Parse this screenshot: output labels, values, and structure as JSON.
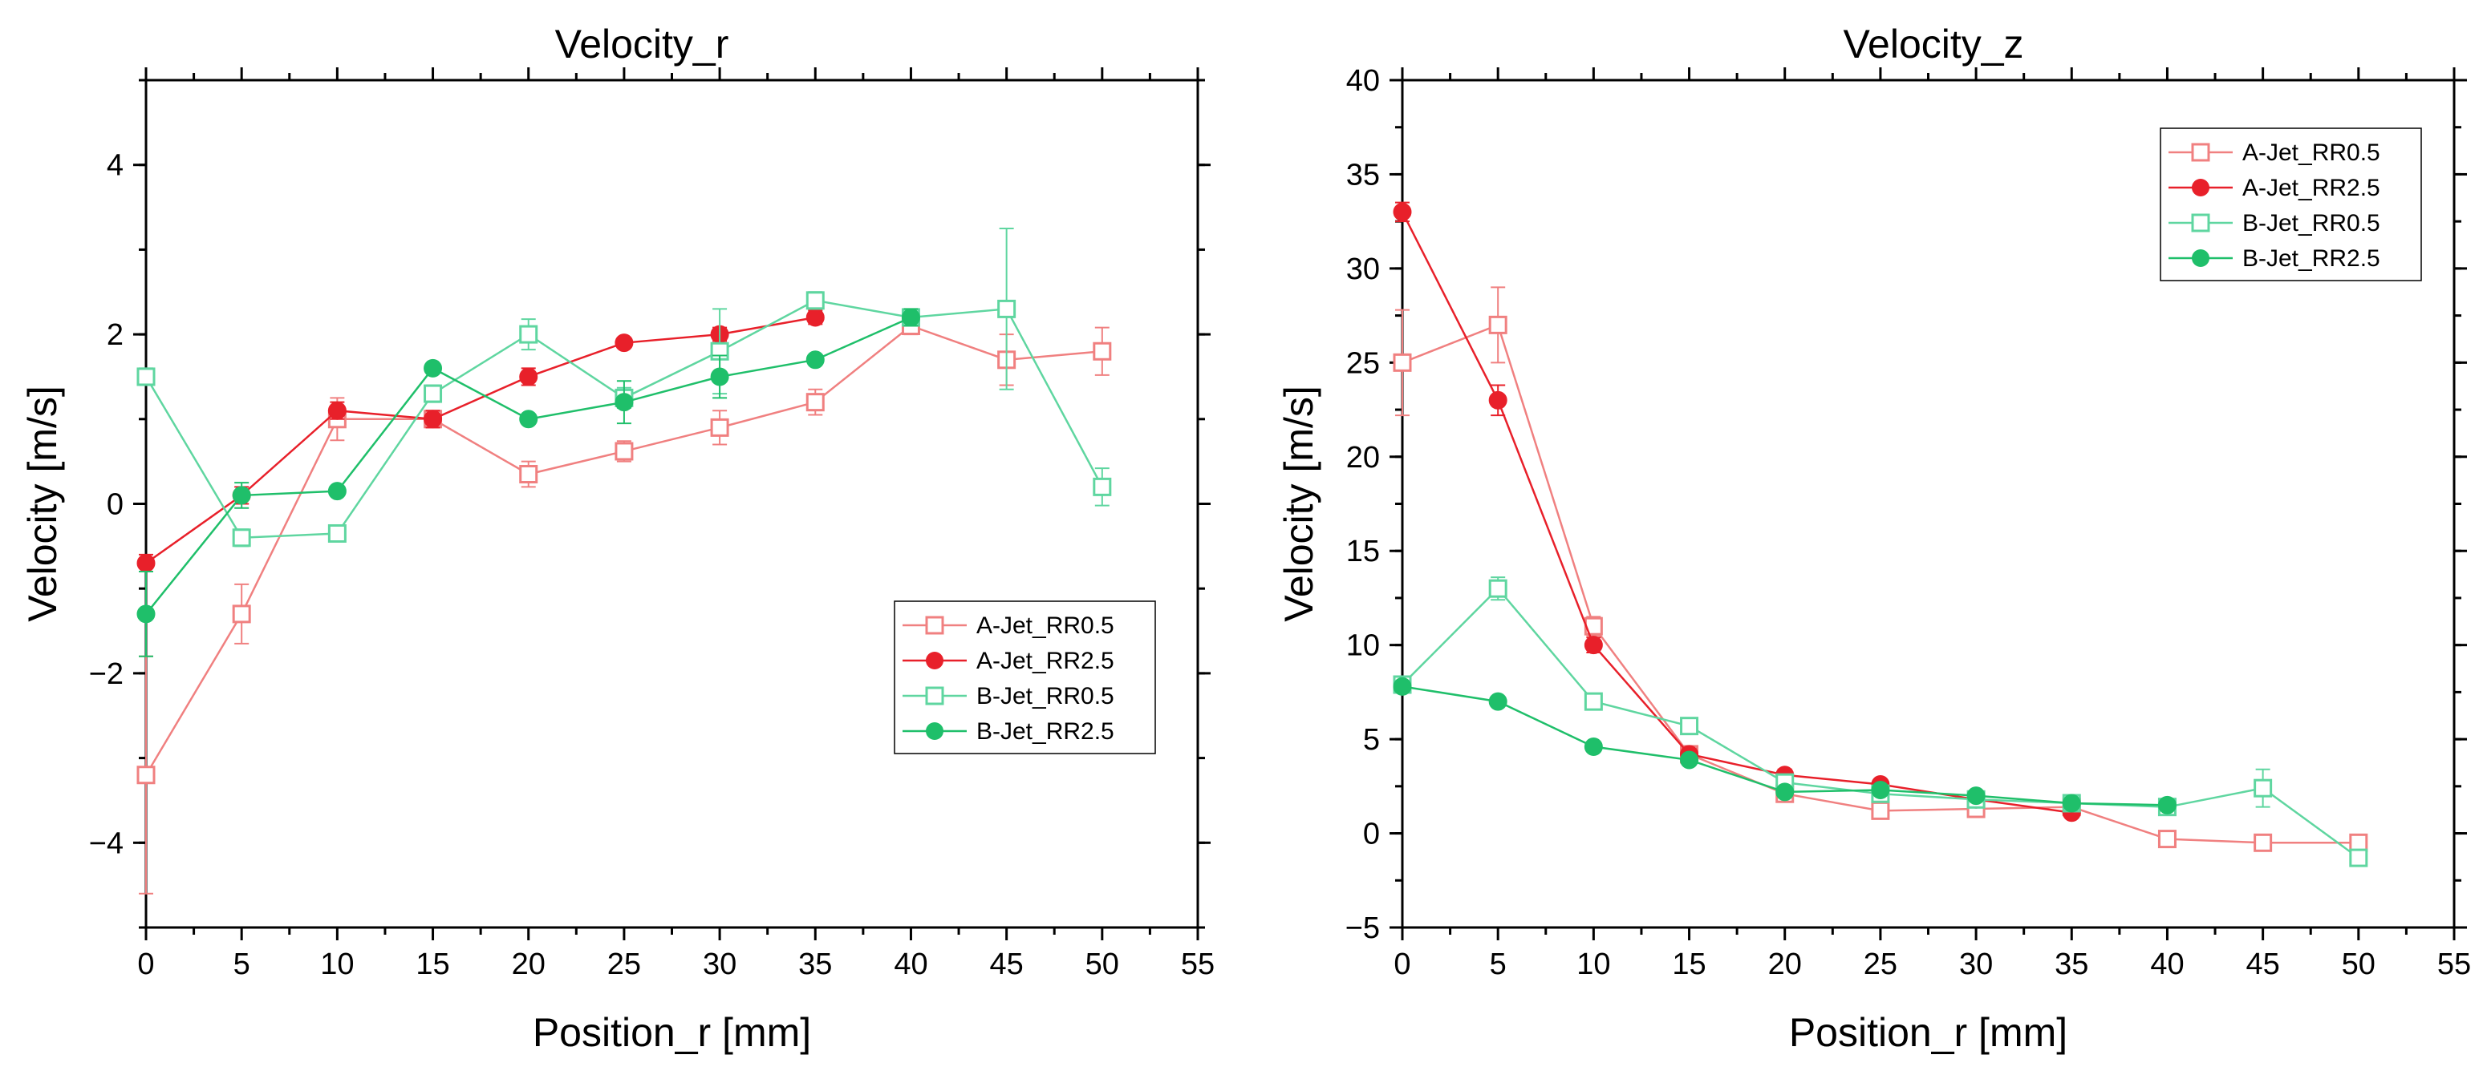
{
  "colors": {
    "a_jet": "#f08080",
    "a_jet_filled": "#e8202a",
    "b_jet": "#5fd6a0",
    "b_jet_filled": "#1fbf6a"
  },
  "chart_data": [
    {
      "type": "line",
      "title": "Velocity_r",
      "xlabel": "Position_r [mm]",
      "ylabel": "Velocity [m/s]",
      "xlim": [
        0,
        55
      ],
      "ylim": [
        -5,
        5
      ],
      "xticks": [
        0,
        5,
        10,
        15,
        20,
        25,
        30,
        35,
        40,
        45,
        50,
        55
      ],
      "yticks": [
        -4,
        -2,
        0,
        2,
        4
      ],
      "legend": "lower-right",
      "series": [
        {
          "name": "A-Jet_RR0.5",
          "color": "#f08080",
          "marker": "open-square",
          "x": [
            0,
            5,
            10,
            15,
            20,
            25,
            30,
            35,
            40,
            45,
            50
          ],
          "y": [
            -3.2,
            -1.3,
            1.0,
            1.0,
            0.35,
            0.62,
            0.9,
            1.2,
            2.1,
            1.7,
            1.8
          ],
          "err": [
            1.4,
            0.35,
            0.25,
            0.1,
            0.15,
            0.12,
            0.2,
            0.15,
            0.1,
            0.3,
            0.28
          ]
        },
        {
          "name": "A-Jet_RR2.5",
          "color": "#e8202a",
          "marker": "filled-circle",
          "x": [
            0,
            5,
            10,
            15,
            20,
            25,
            30,
            35
          ],
          "y": [
            -0.7,
            0.1,
            1.1,
            1.0,
            1.5,
            1.9,
            2.0,
            2.2
          ],
          "err": [
            0.1,
            0.1,
            0.1,
            0.1,
            0.1,
            0.05,
            0.08,
            0.08
          ]
        },
        {
          "name": "B-Jet_RR0.5",
          "color": "#5fd6a0",
          "marker": "open-square",
          "x": [
            0,
            5,
            10,
            15,
            20,
            25,
            30,
            35,
            40,
            45,
            50
          ],
          "y": [
            1.5,
            -0.4,
            -0.35,
            1.3,
            2.0,
            1.25,
            1.8,
            2.4,
            2.2,
            2.3,
            0.2
          ],
          "err": [
            0.1,
            0.1,
            0.08,
            0.1,
            0.18,
            0.12,
            0.5,
            0.1,
            0.08,
            0.95,
            0.22
          ]
        },
        {
          "name": "B-Jet_RR2.5",
          "color": "#1fbf6a",
          "marker": "filled-circle",
          "x": [
            0,
            5,
            10,
            15,
            20,
            25,
            30,
            35,
            40
          ],
          "y": [
            -1.3,
            0.1,
            0.15,
            1.6,
            1.0,
            1.2,
            1.5,
            1.7,
            2.2
          ],
          "err": [
            0.5,
            0.15,
            0.05,
            0.05,
            0.05,
            0.25,
            0.25,
            0.05,
            0.1
          ]
        }
      ]
    },
    {
      "type": "line",
      "title": "Velocity_z",
      "xlabel": "Position_r [mm]",
      "ylabel": "Velocity [m/s]",
      "xlim": [
        0,
        55
      ],
      "ylim": [
        -5,
        40
      ],
      "xticks": [
        0,
        5,
        10,
        15,
        20,
        25,
        30,
        35,
        40,
        45,
        50,
        55
      ],
      "yticks": [
        -5,
        0,
        5,
        10,
        15,
        20,
        25,
        30,
        35,
        40
      ],
      "legend": "top-right",
      "series": [
        {
          "name": "A-Jet_RR0.5",
          "color": "#f08080",
          "marker": "open-square",
          "x": [
            0,
            5,
            10,
            15,
            20,
            25,
            30,
            35,
            40,
            45,
            50
          ],
          "y": [
            25,
            27,
            11,
            4.2,
            2.1,
            1.2,
            1.3,
            1.4,
            -0.3,
            -0.5,
            -0.5
          ],
          "err": [
            2.8,
            2.0,
            0.5,
            0.3,
            0.3,
            0.3,
            0.3,
            0.2,
            0.2,
            0.2,
            0.2
          ]
        },
        {
          "name": "A-Jet_RR2.5",
          "color": "#e8202a",
          "marker": "filled-circle",
          "x": [
            0,
            5,
            10,
            15,
            20,
            25,
            30,
            35
          ],
          "y": [
            33,
            23,
            10,
            4.2,
            3.1,
            2.6,
            1.8,
            1.1
          ],
          "err": [
            0.5,
            0.8,
            0.4,
            0.3,
            0.3,
            0.2,
            0.2,
            0.2
          ]
        },
        {
          "name": "B-Jet_RR0.5",
          "color": "#5fd6a0",
          "marker": "open-square",
          "x": [
            0,
            5,
            10,
            15,
            20,
            25,
            30,
            35,
            40,
            45,
            50
          ],
          "y": [
            7.9,
            13,
            7.0,
            5.7,
            2.7,
            2.1,
            1.8,
            1.6,
            1.4,
            2.4,
            -1.3
          ],
          "err": [
            0.3,
            0.6,
            0.4,
            0.4,
            0.3,
            0.3,
            0.3,
            0.2,
            0.2,
            1.0,
            0.3
          ]
        },
        {
          "name": "B-Jet_RR2.5",
          "color": "#1fbf6a",
          "marker": "filled-circle",
          "x": [
            0,
            5,
            10,
            15,
            20,
            25,
            30,
            35,
            40
          ],
          "y": [
            7.8,
            7.0,
            4.6,
            3.9,
            2.2,
            2.3,
            2.0,
            1.6,
            1.5
          ],
          "err": [
            0.2,
            0.2,
            0.2,
            0.2,
            0.2,
            0.2,
            0.2,
            0.2,
            0.2
          ]
        }
      ]
    }
  ]
}
